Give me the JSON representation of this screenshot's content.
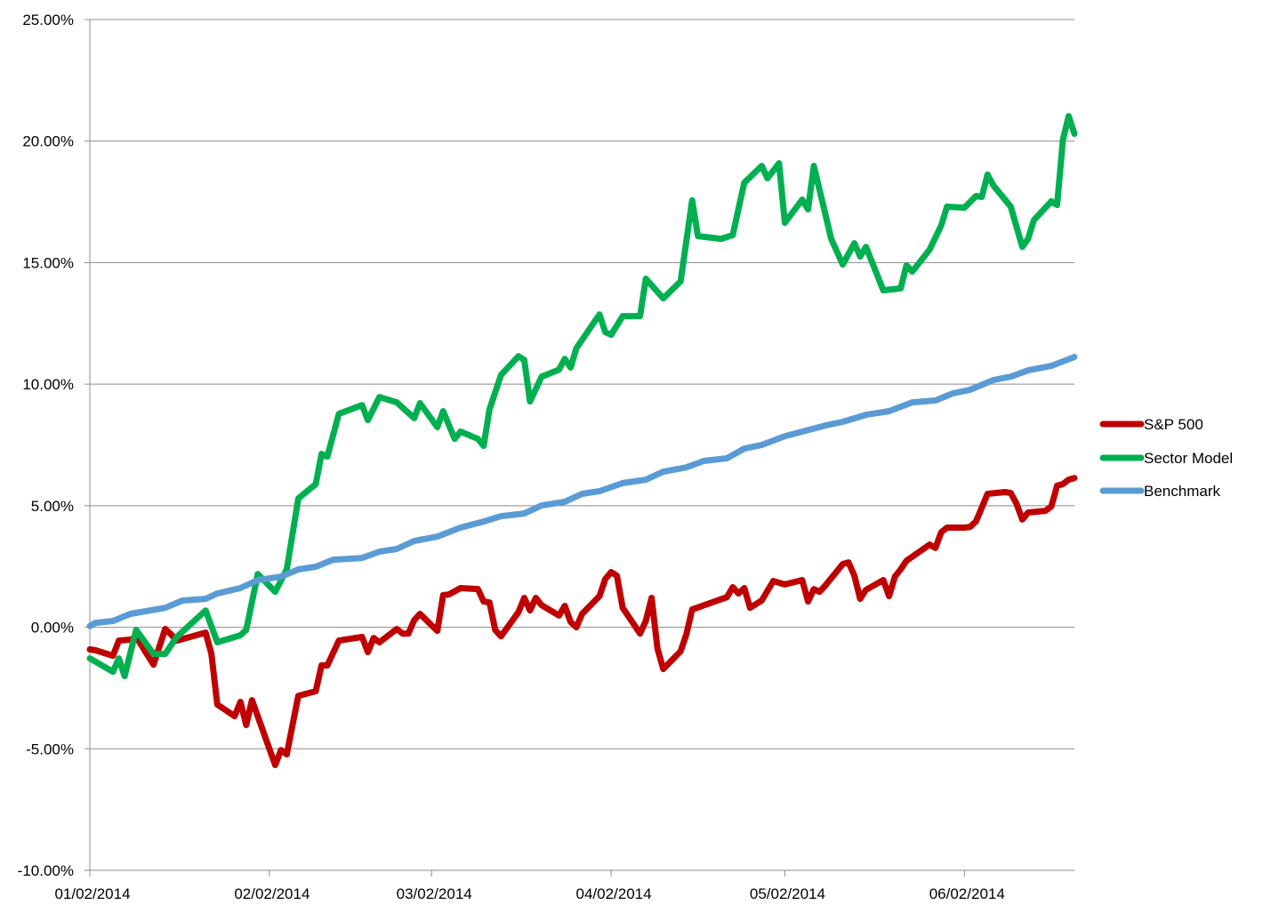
{
  "chart_data": {
    "type": "line",
    "title": "",
    "xlabel": "",
    "ylabel": "",
    "xlim": [
      "01/02/2014",
      "06/21/2014"
    ],
    "ylim": [
      -10,
      25
    ],
    "y_unit": "%",
    "y_ticks": [
      -10,
      -5,
      0,
      5,
      10,
      15,
      20,
      25
    ],
    "y_tick_labels": [
      "-10.00%",
      "-5.00%",
      "0.00%",
      "5.00%",
      "10.00%",
      "15.00%",
      "20.00%",
      "25.00%"
    ],
    "x_ticks": [
      "01/02/2014",
      "02/02/2014",
      "03/02/2014",
      "04/02/2014",
      "05/02/2014",
      "06/02/2014"
    ],
    "x_tick_labels": [
      "01/02/2014",
      "02/02/2014",
      "03/02/2014",
      "04/02/2014",
      "05/02/2014",
      "06/02/2014"
    ],
    "grid": "horizontal",
    "legend_position": "right",
    "series": [
      {
        "name": "S&P 500",
        "color": "#C00000",
        "points": [
          [
            "01/02/2014",
            -0.91
          ],
          [
            "01/03/2014",
            -0.95
          ],
          [
            "01/06/2014",
            -1.17
          ],
          [
            "01/07/2014",
            -0.55
          ],
          [
            "01/09/2014",
            -0.51
          ],
          [
            "01/10/2014",
            -0.4
          ],
          [
            "01/13/2014",
            -1.54
          ],
          [
            "01/15/2014",
            -0.07
          ],
          [
            "01/16/2014",
            -0.29
          ],
          [
            "01/17/2014",
            -0.55
          ],
          [
            "01/22/2014",
            -0.22
          ],
          [
            "01/23/2014",
            -1.1
          ],
          [
            "01/24/2014",
            -3.18
          ],
          [
            "01/27/2014",
            -3.66
          ],
          [
            "01/28/2014",
            -3.07
          ],
          [
            "01/29/2014",
            -4.02
          ],
          [
            "01/30/2014",
            -3.0
          ],
          [
            "02/03/2014",
            -5.67
          ],
          [
            "02/04/2014",
            -5.05
          ],
          [
            "02/05/2014",
            -5.23
          ],
          [
            "02/06/2014",
            -4.02
          ],
          [
            "02/07/2014",
            -2.82
          ],
          [
            "02/10/2014",
            -2.63
          ],
          [
            "02/11/2014",
            -1.57
          ],
          [
            "02/12/2014",
            -1.57
          ],
          [
            "02/14/2014",
            -0.55
          ],
          [
            "02/18/2014",
            -0.4
          ],
          [
            "02/19/2014",
            -1.02
          ],
          [
            "02/20/2014",
            -0.44
          ],
          [
            "02/21/2014",
            -0.62
          ],
          [
            "02/24/2014",
            -0.07
          ],
          [
            "02/25/2014",
            -0.26
          ],
          [
            "02/26/2014",
            -0.26
          ],
          [
            "02/27/2014",
            0.29
          ],
          [
            "02/28/2014",
            0.55
          ],
          [
            "03/03/2014",
            -0.15
          ],
          [
            "03/04/2014",
            1.32
          ],
          [
            "03/05/2014",
            1.35
          ],
          [
            "03/07/2014",
            1.61
          ],
          [
            "03/10/2014",
            1.57
          ],
          [
            "03/11/2014",
            1.06
          ],
          [
            "03/12/2014",
            1.02
          ],
          [
            "03/13/2014",
            -0.11
          ],
          [
            "03/14/2014",
            -0.37
          ],
          [
            "03/17/2014",
            0.62
          ],
          [
            "03/18/2014",
            1.21
          ],
          [
            "03/19/2014",
            0.69
          ],
          [
            "03/20/2014",
            1.21
          ],
          [
            "03/21/2014",
            0.91
          ],
          [
            "03/24/2014",
            0.48
          ],
          [
            "03/25/2014",
            0.88
          ],
          [
            "03/26/2014",
            0.22
          ],
          [
            "03/27/2014",
            0.0
          ],
          [
            "03/28/2014",
            0.55
          ],
          [
            "03/31/2014",
            1.28
          ],
          [
            "04/01/2014",
            1.98
          ],
          [
            "04/02/2014",
            2.27
          ],
          [
            "04/03/2014",
            2.12
          ],
          [
            "04/04/2014",
            0.8
          ],
          [
            "04/07/2014",
            -0.26
          ],
          [
            "04/08/2014",
            0.26
          ],
          [
            "04/09/2014",
            1.21
          ],
          [
            "04/10/2014",
            -0.88
          ],
          [
            "04/11/2014",
            -1.72
          ],
          [
            "04/14/2014",
            -0.99
          ],
          [
            "04/15/2014",
            -0.29
          ],
          [
            "04/16/2014",
            0.73
          ],
          [
            "04/22/2014",
            1.24
          ],
          [
            "04/23/2014",
            1.65
          ],
          [
            "04/24/2014",
            1.39
          ],
          [
            "04/25/2014",
            1.61
          ],
          [
            "04/26/2014",
            0.8
          ],
          [
            "04/28/2014",
            1.1
          ],
          [
            "04/30/2014",
            1.9
          ],
          [
            "05/01/2014",
            1.83
          ],
          [
            "05/02/2014",
            1.76
          ],
          [
            "05/05/2014",
            1.94
          ],
          [
            "05/06/2014",
            1.06
          ],
          [
            "05/07/2014",
            1.57
          ],
          [
            "05/08/2014",
            1.46
          ],
          [
            "05/09/2014",
            1.72
          ],
          [
            "05/12/2014",
            2.6
          ],
          [
            "05/13/2014",
            2.67
          ],
          [
            "05/14/2014",
            2.12
          ],
          [
            "05/15/2014",
            1.17
          ],
          [
            "05/16/2014",
            1.54
          ],
          [
            "05/19/2014",
            1.94
          ],
          [
            "05/20/2014",
            1.28
          ],
          [
            "05/21/2014",
            2.08
          ],
          [
            "05/22/2014",
            2.38
          ],
          [
            "05/23/2014",
            2.74
          ],
          [
            "05/27/2014",
            3.4
          ],
          [
            "05/28/2014",
            3.26
          ],
          [
            "05/29/2014",
            3.91
          ],
          [
            "05/30/2014",
            4.1
          ],
          [
            "06/02/2014",
            4.1
          ],
          [
            "06/03/2014",
            4.13
          ],
          [
            "06/04/2014",
            4.35
          ],
          [
            "06/06/2014",
            5.49
          ],
          [
            "06/09/2014",
            5.56
          ],
          [
            "06/10/2014",
            5.52
          ],
          [
            "06/11/2014",
            5.08
          ],
          [
            "06/12/2014",
            4.43
          ],
          [
            "06/13/2014",
            4.72
          ],
          [
            "06/16/2014",
            4.79
          ],
          [
            "06/17/2014",
            4.97
          ],
          [
            "06/18/2014",
            5.82
          ],
          [
            "06/19/2014",
            5.89
          ],
          [
            "06/20/2014",
            6.07
          ],
          [
            "06/21/2014",
            6.14
          ]
        ]
      },
      {
        "name": "Sector Model",
        "color": "#00B050",
        "points": [
          [
            "01/02/2014",
            -1.28
          ],
          [
            "01/06/2014",
            -1.83
          ],
          [
            "01/07/2014",
            -1.28
          ],
          [
            "01/08/2014",
            -2.01
          ],
          [
            "01/10/2014",
            -0.11
          ],
          [
            "01/13/2014",
            -1.1
          ],
          [
            "01/15/2014",
            -1.1
          ],
          [
            "01/17/2014",
            -0.4
          ],
          [
            "01/22/2014",
            0.69
          ],
          [
            "01/24/2014",
            -0.62
          ],
          [
            "01/28/2014",
            -0.33
          ],
          [
            "01/29/2014",
            -0.11
          ],
          [
            "01/31/2014",
            2.19
          ],
          [
            "02/03/2014",
            1.46
          ],
          [
            "02/05/2014",
            2.38
          ],
          [
            "02/07/2014",
            5.3
          ],
          [
            "02/10/2014",
            5.89
          ],
          [
            "02/11/2014",
            7.13
          ],
          [
            "02/12/2014",
            7.02
          ],
          [
            "02/14/2014",
            8.78
          ],
          [
            "02/18/2014",
            9.14
          ],
          [
            "02/19/2014",
            8.52
          ],
          [
            "02/21/2014",
            9.47
          ],
          [
            "02/24/2014",
            9.25
          ],
          [
            "02/27/2014",
            8.6
          ],
          [
            "02/28/2014",
            9.22
          ],
          [
            "03/03/2014",
            8.23
          ],
          [
            "03/04/2014",
            8.89
          ],
          [
            "03/06/2014",
            7.75
          ],
          [
            "03/07/2014",
            8.05
          ],
          [
            "03/10/2014",
            7.75
          ],
          [
            "03/11/2014",
            7.46
          ],
          [
            "03/12/2014",
            8.96
          ],
          [
            "03/14/2014",
            10.38
          ],
          [
            "03/17/2014",
            11.15
          ],
          [
            "03/18/2014",
            11.0
          ],
          [
            "03/19/2014",
            9.29
          ],
          [
            "03/21/2014",
            10.31
          ],
          [
            "03/24/2014",
            10.6
          ],
          [
            "03/25/2014",
            11.04
          ],
          [
            "03/26/2014",
            10.68
          ],
          [
            "03/27/2014",
            11.48
          ],
          [
            "03/31/2014",
            12.87
          ],
          [
            "04/01/2014",
            12.14
          ],
          [
            "04/02/2014",
            12.03
          ],
          [
            "04/04/2014",
            12.8
          ],
          [
            "04/07/2014",
            12.8
          ],
          [
            "04/08/2014",
            14.34
          ],
          [
            "04/11/2014",
            13.53
          ],
          [
            "04/14/2014",
            14.23
          ],
          [
            "04/16/2014",
            17.56
          ],
          [
            "04/17/2014",
            16.09
          ],
          [
            "04/21/2014",
            15.98
          ],
          [
            "04/23/2014",
            16.13
          ],
          [
            "04/25/2014",
            18.29
          ],
          [
            "04/28/2014",
            18.98
          ],
          [
            "04/29/2014",
            18.47
          ],
          [
            "05/01/2014",
            19.09
          ],
          [
            "05/02/2014",
            16.64
          ],
          [
            "05/05/2014",
            17.59
          ],
          [
            "05/06/2014",
            17.19
          ],
          [
            "05/07/2014",
            18.98
          ],
          [
            "05/10/2014",
            15.98
          ],
          [
            "05/12/2014",
            14.92
          ],
          [
            "05/14/2014",
            15.8
          ],
          [
            "05/15/2014",
            15.25
          ],
          [
            "05/16/2014",
            15.65
          ],
          [
            "05/19/2014",
            13.86
          ],
          [
            "05/22/2014",
            13.94
          ],
          [
            "05/23/2014",
            14.89
          ],
          [
            "05/24/2014",
            14.63
          ],
          [
            "05/27/2014",
            15.54
          ],
          [
            "05/29/2014",
            16.53
          ],
          [
            "05/30/2014",
            17.3
          ],
          [
            "06/02/2014",
            17.26
          ],
          [
            "06/04/2014",
            17.74
          ],
          [
            "06/05/2014",
            17.7
          ],
          [
            "06/06/2014",
            18.62
          ],
          [
            "06/07/2014",
            18.18
          ],
          [
            "06/10/2014",
            17.3
          ],
          [
            "06/12/2014",
            15.65
          ],
          [
            "06/13/2014",
            15.98
          ],
          [
            "06/14/2014",
            16.75
          ],
          [
            "06/17/2014",
            17.52
          ],
          [
            "06/18/2014",
            17.37
          ],
          [
            "06/19/2014",
            20.04
          ],
          [
            "06/20/2014",
            21.03
          ],
          [
            "06/21/2014",
            20.3
          ]
        ]
      },
      {
        "name": "Benchmark",
        "color": "#5B9BD5",
        "points": [
          [
            "01/02/2014",
            0.05
          ],
          [
            "01/03/2014",
            0.18
          ],
          [
            "01/06/2014",
            0.26
          ],
          [
            "01/09/2014",
            0.55
          ],
          [
            "01/15/2014",
            0.8
          ],
          [
            "01/18/2014",
            1.1
          ],
          [
            "01/22/2014",
            1.17
          ],
          [
            "01/24/2014",
            1.39
          ],
          [
            "01/28/2014",
            1.61
          ],
          [
            "01/31/2014",
            1.94
          ],
          [
            "02/04/2014",
            2.08
          ],
          [
            "02/07/2014",
            2.38
          ],
          [
            "02/10/2014",
            2.49
          ],
          [
            "02/13/2014",
            2.78
          ],
          [
            "02/18/2014",
            2.85
          ],
          [
            "02/21/2014",
            3.11
          ],
          [
            "02/24/2014",
            3.22
          ],
          [
            "02/27/2014",
            3.55
          ],
          [
            "03/03/2014",
            3.73
          ],
          [
            "03/07/2014",
            4.1
          ],
          [
            "03/11/2014",
            4.35
          ],
          [
            "03/14/2014",
            4.57
          ],
          [
            "03/18/2014",
            4.68
          ],
          [
            "03/21/2014",
            5.01
          ],
          [
            "03/25/2014",
            5.16
          ],
          [
            "03/28/2014",
            5.49
          ],
          [
            "03/31/2014",
            5.6
          ],
          [
            "04/04/2014",
            5.93
          ],
          [
            "04/08/2014",
            6.07
          ],
          [
            "04/11/2014",
            6.4
          ],
          [
            "04/15/2014",
            6.58
          ],
          [
            "04/18/2014",
            6.84
          ],
          [
            "04/22/2014",
            6.95
          ],
          [
            "04/25/2014",
            7.35
          ],
          [
            "04/28/2014",
            7.5
          ],
          [
            "05/02/2014",
            7.86
          ],
          [
            "05/05/2014",
            8.05
          ],
          [
            "05/09/2014",
            8.3
          ],
          [
            "05/12/2014",
            8.45
          ],
          [
            "05/16/2014",
            8.74
          ],
          [
            "05/20/2014",
            8.89
          ],
          [
            "05/24/2014",
            9.25
          ],
          [
            "05/28/2014",
            9.33
          ],
          [
            "05/31/2014",
            9.62
          ],
          [
            "06/03/2014",
            9.77
          ],
          [
            "06/07/2014",
            10.17
          ],
          [
            "06/10/2014",
            10.31
          ],
          [
            "06/13/2014",
            10.57
          ],
          [
            "06/17/2014",
            10.75
          ],
          [
            "06/21/2014",
            11.12
          ]
        ]
      }
    ]
  }
}
